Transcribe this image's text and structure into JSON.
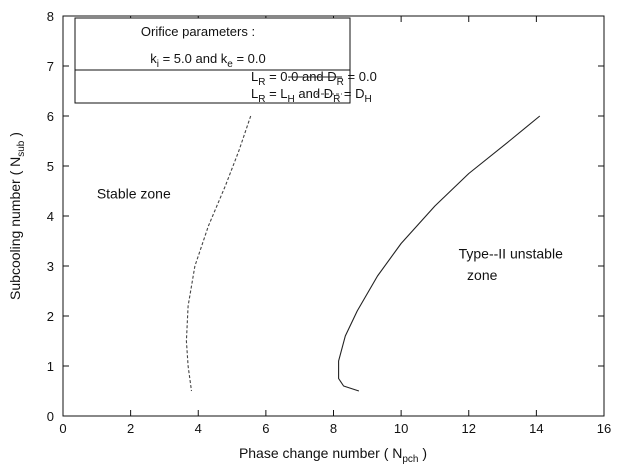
{
  "chart_data": {
    "type": "line",
    "xlabel": {
      "main": "Phase change number ( N",
      "sub": "pch",
      "tail": " )"
    },
    "ylabel": {
      "main": "Subcooling number ( N",
      "sub": "sub",
      "tail": " )"
    },
    "xlim": [
      0,
      16
    ],
    "ylim": [
      0,
      8
    ],
    "xticks": [
      0,
      2,
      4,
      6,
      8,
      10,
      12,
      14,
      16
    ],
    "yticks": [
      0,
      1,
      2,
      3,
      4,
      5,
      6,
      7,
      8
    ],
    "grid": false,
    "legend": {
      "placement": "top-left",
      "title": "Orifice parameters :",
      "param": {
        "k": "k",
        "ki_sub": "i",
        "ki_val": " = 5.0 and k",
        "ke_sub": "e",
        "ke_val": " = 0.0"
      },
      "entries": [
        {
          "p1": "L",
          "s1": "R",
          "m1": " = 0.0  and  D",
          "s2": "R",
          "m2": " = 0.0"
        },
        {
          "p1": "L",
          "s1": "R",
          "m1": " = L",
          "s2": "H",
          "m2": "  and  D",
          "s3": "R",
          "m3": " = D",
          "s4": "H"
        }
      ]
    },
    "series": [
      {
        "style": "solid",
        "color": "#222222",
        "points": [
          [
            14.1,
            6.0
          ],
          [
            13.2,
            5.5
          ],
          [
            12.0,
            4.85
          ],
          [
            11.0,
            4.2
          ],
          [
            10.0,
            3.45
          ],
          [
            9.3,
            2.8
          ],
          [
            8.7,
            2.1
          ],
          [
            8.35,
            1.6
          ],
          [
            8.15,
            1.1
          ],
          [
            8.15,
            0.75
          ],
          [
            8.3,
            0.6
          ],
          [
            8.75,
            0.5
          ]
        ]
      },
      {
        "style": "dashed",
        "color": "#444444",
        "points": [
          [
            5.55,
            6.0
          ],
          [
            5.2,
            5.3
          ],
          [
            4.8,
            4.6
          ],
          [
            4.3,
            3.8
          ],
          [
            3.9,
            3.0
          ],
          [
            3.7,
            2.2
          ],
          [
            3.65,
            1.5
          ],
          [
            3.7,
            1.0
          ],
          [
            3.8,
            0.5
          ]
        ]
      }
    ],
    "annotations": [
      {
        "name": "stable-zone",
        "lines": [
          "Stable zone"
        ],
        "x": 1.0,
        "y": 4.35
      },
      {
        "name": "type2-zone",
        "lines": [
          "Type--II unstable",
          "zone"
        ],
        "x": 11.7,
        "y": 3.15,
        "x2": 11.95,
        "y2": 2.72
      }
    ]
  }
}
